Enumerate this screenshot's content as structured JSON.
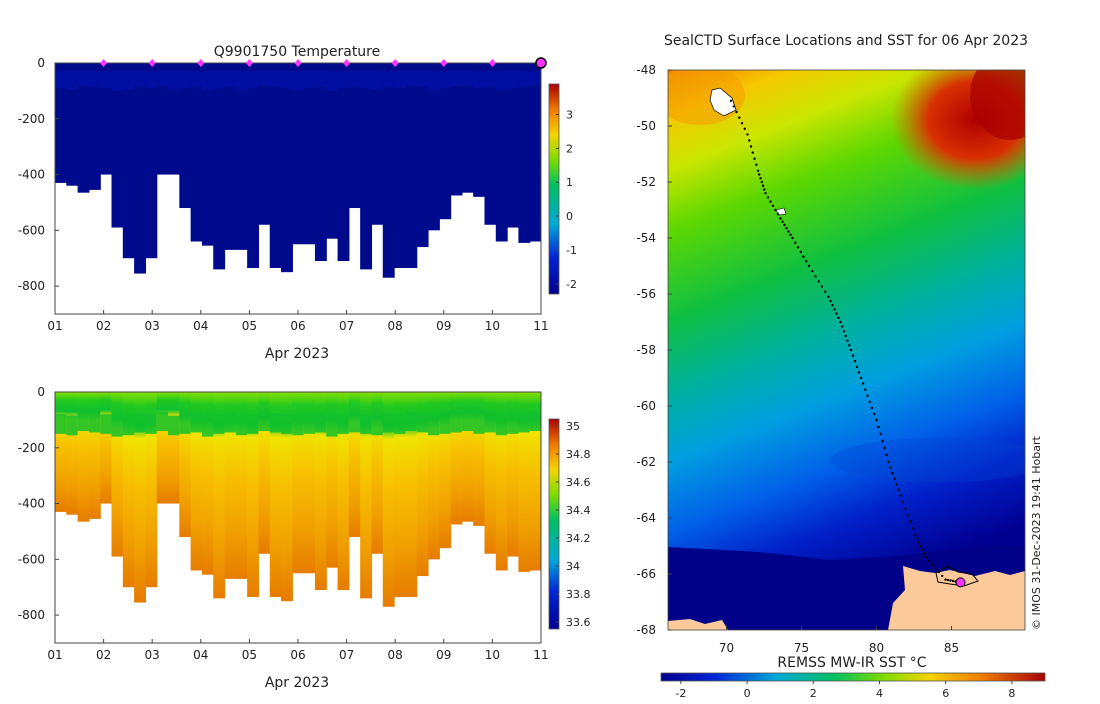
{
  "chart_data": [
    {
      "id": "temperature-section",
      "type": "heatmap",
      "title": "Q9901750  Temperature",
      "xlabel": "Apr 2023",
      "ylabel": "",
      "x_ticks": [
        "01",
        "02",
        "03",
        "04",
        "05",
        "06",
        "07",
        "08",
        "09",
        "10",
        "11"
      ],
      "y_ticks": [
        0,
        -200,
        -400,
        -600,
        -800
      ],
      "ylim": [
        -900,
        0
      ],
      "colorbar": {
        "range": [
          -2.3,
          3.9
        ],
        "ticks": [
          -2,
          -1,
          0,
          1,
          2,
          3
        ]
      },
      "profile_markers_day": [
        2,
        3,
        4,
        5,
        6,
        7,
        8,
        9,
        10,
        11
      ],
      "profile_max_depths_m": [
        430,
        440,
        465,
        455,
        400,
        590,
        700,
        755,
        700,
        400,
        400,
        520,
        640,
        655,
        740,
        670,
        670,
        735,
        580,
        735,
        750,
        650,
        650,
        710,
        630,
        710,
        520,
        740,
        580,
        770,
        735,
        735,
        660,
        600,
        560,
        475,
        465,
        480,
        580,
        640,
        590,
        645,
        640
      ],
      "surface_layer_depth_m": [
        90,
        95,
        80,
        85,
        90,
        100,
        95,
        85,
        90,
        80,
        95,
        90,
        85,
        100,
        90,
        85,
        95,
        90,
        80,
        85,
        90,
        95,
        90,
        85,
        100,
        90,
        85,
        90,
        95,
        85,
        90,
        80,
        85,
        95,
        90,
        85,
        80,
        90,
        85,
        95,
        90,
        85,
        80
      ]
    },
    {
      "id": "salinity-section",
      "type": "heatmap",
      "title": "",
      "xlabel": "Apr 2023",
      "ylabel": "",
      "x_ticks": [
        "01",
        "02",
        "03",
        "04",
        "05",
        "06",
        "07",
        "08",
        "09",
        "10",
        "11"
      ],
      "y_ticks": [
        0,
        -200,
        -400,
        -600,
        -800
      ],
      "ylim": [
        -900,
        0
      ],
      "colorbar": {
        "range": [
          33.55,
          35.05
        ],
        "ticks": [
          33.6,
          33.8,
          34,
          34.2,
          34.4,
          34.6,
          34.8,
          35
        ]
      }
    },
    {
      "id": "sst-map",
      "type": "heatmap",
      "title": "SealCTD Surface Locations and SST for 06 Apr 2023",
      "xlabel": "",
      "ylabel": "",
      "x_ticks": [
        70,
        75,
        80,
        85
      ],
      "y_ticks": [
        -48,
        -50,
        -52,
        -54,
        -56,
        -58,
        -60,
        -62,
        -64,
        -66,
        -68
      ],
      "xlim": [
        66.1,
        89.9
      ],
      "ylim": [
        -68,
        -48
      ],
      "colorbar_label": "REMSS MW-IR SST °C",
      "colorbar": {
        "range": [
          -2.6,
          9
        ],
        "ticks": [
          -2,
          0,
          2,
          4,
          6,
          8
        ]
      },
      "track": [
        [
          70.3,
          -49.1
        ],
        [
          71.4,
          -50.3
        ],
        [
          72.1,
          -51.6
        ],
        [
          72.6,
          -52.4
        ],
        [
          73.6,
          -53.3
        ],
        [
          74.4,
          -54.0
        ],
        [
          75.5,
          -55.0
        ],
        [
          76.8,
          -56.1
        ],
        [
          77.6,
          -57.0
        ],
        [
          78.3,
          -58.0
        ],
        [
          79.1,
          -59.2
        ],
        [
          80.0,
          -60.5
        ],
        [
          80.8,
          -62.0
        ],
        [
          81.6,
          -63.2
        ],
        [
          82.6,
          -64.6
        ],
        [
          83.3,
          -65.4
        ],
        [
          84.6,
          -66.2
        ],
        [
          85.6,
          -66.3
        ]
      ],
      "current_location": [
        85.6,
        -66.3
      ],
      "credit": "© IMOS 31-Dec-2023 19:41 Hobart"
    }
  ]
}
